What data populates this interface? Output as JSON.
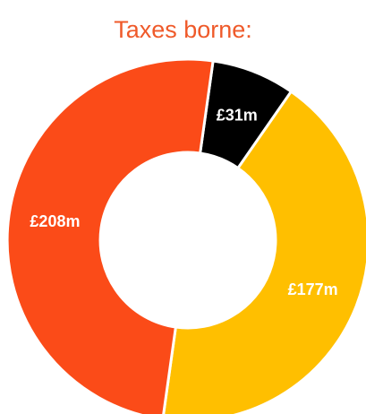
{
  "chart_data": {
    "type": "pie",
    "title": "Taxes borne:",
    "donut": true,
    "slices": [
      {
        "label": "£31m",
        "value": 31,
        "color": "#000000"
      },
      {
        "label": "£177m",
        "value": 177,
        "color": "#ffbf00"
      },
      {
        "label": "£208m",
        "value": 208,
        "color": "#fb4b18"
      }
    ],
    "title_color": "#ef5a2a",
    "label_color": "#ffffff",
    "separator_color": "#ffffff"
  }
}
